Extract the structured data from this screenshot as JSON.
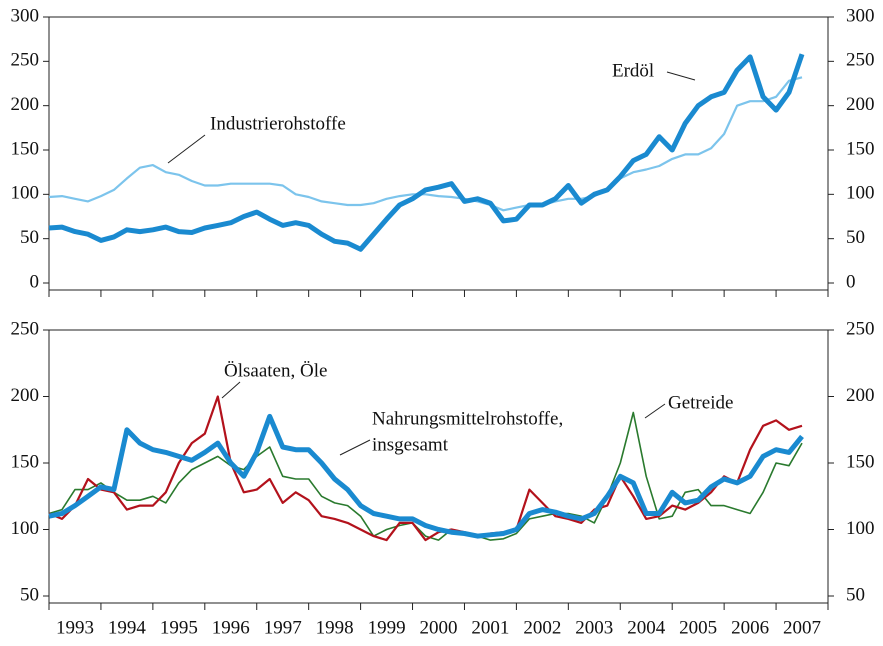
{
  "chart_data": [
    {
      "type": "line",
      "x": [
        1993,
        1993.25,
        1993.5,
        1993.75,
        1994,
        1994.25,
        1994.5,
        1994.75,
        1995,
        1995.25,
        1995.5,
        1995.75,
        1996,
        1996.25,
        1996.5,
        1996.75,
        1997,
        1997.25,
        1997.5,
        1997.75,
        1998,
        1998.25,
        1998.5,
        1998.75,
        1999,
        1999.25,
        1999.5,
        1999.75,
        2000,
        2000.25,
        2000.5,
        2000.75,
        2001,
        2001.25,
        2001.5,
        2001.75,
        2002,
        2002.25,
        2002.5,
        2002.75,
        2003,
        2003.25,
        2003.5,
        2003.75,
        2004,
        2004.25,
        2004.5,
        2004.75,
        2005,
        2005.25,
        2005.5,
        2005.75,
        2006,
        2006.25,
        2006.5,
        2006.75,
        2007,
        2007.25,
        2007.5
      ],
      "series": [
        {
          "name": "Industrierohstoffe",
          "color": "#7cc4ec",
          "width": 2.2,
          "values": [
            97,
            98,
            95,
            92,
            98,
            105,
            118,
            130,
            133,
            125,
            122,
            115,
            110,
            110,
            112,
            112,
            112,
            112,
            110,
            100,
            97,
            92,
            90,
            88,
            88,
            90,
            95,
            98,
            100,
            100,
            98,
            97,
            95,
            92,
            88,
            82,
            85,
            88,
            88,
            92,
            95,
            95,
            98,
            105,
            118,
            125,
            128,
            132,
            140,
            145,
            145,
            152,
            168,
            200,
            205,
            205,
            210,
            228,
            232
          ]
        },
        {
          "name": "Erdöl",
          "color": "#1a8ad0",
          "width": 5,
          "values": [
            62,
            63,
            58,
            55,
            48,
            52,
            60,
            58,
            60,
            63,
            58,
            57,
            62,
            65,
            68,
            75,
            80,
            72,
            65,
            68,
            65,
            55,
            47,
            45,
            38,
            55,
            72,
            88,
            95,
            105,
            108,
            112,
            92,
            95,
            90,
            70,
            72,
            88,
            88,
            95,
            110,
            90,
            100,
            105,
            120,
            138,
            145,
            165,
            150,
            180,
            200,
            210,
            215,
            240,
            255,
            210,
            195,
            215,
            258
          ]
        }
      ],
      "annotations": [
        "Industrierohstoffe",
        "Erdöl"
      ],
      "xlim": [
        1993,
        2008
      ],
      "xticks": [
        1993,
        1994,
        1995,
        1996,
        1997,
        1998,
        1999,
        2000,
        2001,
        2002,
        2003,
        2004,
        2005,
        2006,
        2007,
        2008
      ],
      "ylim": [
        0,
        300
      ],
      "yticks": [
        0,
        50,
        100,
        150,
        200,
        250,
        300
      ]
    },
    {
      "type": "line",
      "x": [
        1993,
        1993.25,
        1993.5,
        1993.75,
        1994,
        1994.25,
        1994.5,
        1994.75,
        1995,
        1995.25,
        1995.5,
        1995.75,
        1996,
        1996.25,
        1996.5,
        1996.75,
        1997,
        1997.25,
        1997.5,
        1997.75,
        1998,
        1998.25,
        1998.5,
        1998.75,
        1999,
        1999.25,
        1999.5,
        1999.75,
        2000,
        2000.25,
        2000.5,
        2000.75,
        2001,
        2001.25,
        2001.5,
        2001.75,
        2002,
        2002.25,
        2002.5,
        2002.75,
        2003,
        2003.25,
        2003.5,
        2003.75,
        2004,
        2004.25,
        2004.5,
        2004.75,
        2005,
        2005.25,
        2005.5,
        2005.75,
        2006,
        2006.25,
        2006.5,
        2006.75,
        2007,
        2007.25,
        2007.5
      ],
      "series": [
        {
          "name": "Getreide",
          "color": "#2a7a2e",
          "width": 1.6,
          "values": [
            112,
            115,
            130,
            130,
            135,
            128,
            122,
            122,
            125,
            120,
            135,
            145,
            150,
            155,
            148,
            145,
            155,
            162,
            140,
            138,
            138,
            125,
            120,
            118,
            110,
            95,
            100,
            103,
            105,
            95,
            92,
            100,
            98,
            95,
            92,
            93,
            97,
            108,
            110,
            112,
            112,
            110,
            105,
            125,
            150,
            188,
            140,
            108,
            110,
            128,
            130,
            118,
            118,
            115,
            112,
            128,
            150,
            148,
            165
          ]
        },
        {
          "name": "Ölsaaten, Öle",
          "color": "#b3121c",
          "width": 2.2,
          "values": [
            112,
            108,
            118,
            138,
            130,
            128,
            115,
            118,
            118,
            128,
            150,
            165,
            172,
            200,
            150,
            128,
            130,
            138,
            120,
            128,
            122,
            110,
            108,
            105,
            100,
            95,
            92,
            105,
            105,
            92,
            98,
            100,
            98,
            95,
            97,
            98,
            100,
            130,
            120,
            110,
            108,
            105,
            115,
            118,
            140,
            125,
            108,
            110,
            118,
            115,
            120,
            128,
            140,
            135,
            160,
            178,
            182,
            175,
            178
          ]
        },
        {
          "name": "Nahrungsmittelrohstoffe, insgesamt",
          "color": "#1a8ad0",
          "width": 5,
          "values": [
            110,
            112,
            118,
            125,
            132,
            130,
            175,
            165,
            160,
            158,
            155,
            152,
            158,
            165,
            150,
            140,
            158,
            185,
            162,
            160,
            160,
            150,
            138,
            130,
            118,
            112,
            110,
            108,
            108,
            103,
            100,
            98,
            97,
            95,
            96,
            97,
            100,
            112,
            115,
            113,
            110,
            108,
            112,
            125,
            140,
            135,
            112,
            112,
            128,
            120,
            122,
            132,
            138,
            135,
            140,
            155,
            160,
            158,
            170
          ]
        }
      ],
      "annotations": [
        "Ölsaaten, Öle",
        [
          "Nahrungsmittelrohstoffe,",
          "insgesamt"
        ],
        "Getreide"
      ],
      "xlim": [
        1993,
        2008
      ],
      "xticks": [
        1993,
        1994,
        1995,
        1996,
        1997,
        1998,
        1999,
        2000,
        2001,
        2002,
        2003,
        2004,
        2005,
        2006,
        2007,
        2008
      ],
      "xlabels": [
        {
          "value": 1993.5,
          "label": "1993"
        },
        {
          "value": 1994.5,
          "label": "1994"
        },
        {
          "value": 1995.5,
          "label": "1995"
        },
        {
          "value": 1996.5,
          "label": "1996"
        },
        {
          "value": 1997.5,
          "label": "1997"
        },
        {
          "value": 1998.5,
          "label": "1998"
        },
        {
          "value": 1999.5,
          "label": "1999"
        },
        {
          "value": 2000.5,
          "label": "2000"
        },
        {
          "value": 2001.5,
          "label": "2001"
        },
        {
          "value": 2002.5,
          "label": "2002"
        },
        {
          "value": 2003.5,
          "label": "2003"
        },
        {
          "value": 2004.5,
          "label": "2004"
        },
        {
          "value": 2005.5,
          "label": "2005"
        },
        {
          "value": 2006.5,
          "label": "2006"
        },
        {
          "value": 2007.5,
          "label": "2007"
        }
      ],
      "ylim": [
        50,
        250
      ],
      "yticks": [
        50,
        100,
        150,
        200,
        250
      ]
    }
  ]
}
